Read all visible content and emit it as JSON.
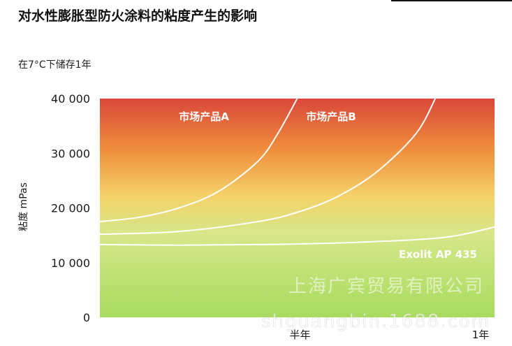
{
  "title": "对水性膨胀型防火涂料的粘度产生的影响",
  "subtitle": "在7°C下储存1年",
  "watermark": {
    "line1": "上海广宾贸易有限公司",
    "line2": "shguangbin.1688.com"
  },
  "colors": {
    "gradient_top": "#d9473b",
    "gradient_mid1": "#ef8a3b",
    "gradient_mid2": "#f4d36a",
    "gradient_low": "#d7e78a",
    "gradient_bottom": "#a7db5e",
    "curve": "#ffffff",
    "text": "#1a1a1a"
  },
  "chart_data": {
    "type": "line",
    "title": "对水性膨胀型防火涂料的粘度产生的影响",
    "subtitle": "在7°C下储存1年",
    "xlabel": "",
    "ylabel": "粘度 mPas",
    "ylim": [
      0,
      40000
    ],
    "xlim": [
      0,
      1
    ],
    "x_ticks": [
      {
        "value": 0.5,
        "label": "半年"
      },
      {
        "value": 1.0,
        "label": "1年"
      }
    ],
    "y_ticks": [
      {
        "value": 0,
        "label": "0"
      },
      {
        "value": 10000,
        "label": "10 000"
      },
      {
        "value": 20000,
        "label": "20 000"
      },
      {
        "value": 30000,
        "label": "30 000"
      },
      {
        "value": 40000,
        "label": "40 000"
      }
    ],
    "grid": false,
    "series": [
      {
        "name": "市场产品A",
        "x": [
          0.0,
          0.1,
          0.2,
          0.3,
          0.4,
          0.45,
          0.5
        ],
        "y": [
          17500,
          18300,
          20000,
          23000,
          28500,
          33500,
          40000
        ]
      },
      {
        "name": "市场产品B",
        "x": [
          0.0,
          0.2,
          0.4,
          0.5,
          0.6,
          0.7,
          0.8,
          0.85
        ],
        "y": [
          15200,
          15700,
          17500,
          19200,
          22000,
          26500,
          33500,
          40000
        ]
      },
      {
        "name": "Exolit AP 435",
        "x": [
          0.0,
          0.2,
          0.4,
          0.6,
          0.8,
          0.9,
          1.0
        ],
        "y": [
          13300,
          13200,
          13300,
          13600,
          14200,
          14900,
          16500
        ]
      }
    ]
  }
}
